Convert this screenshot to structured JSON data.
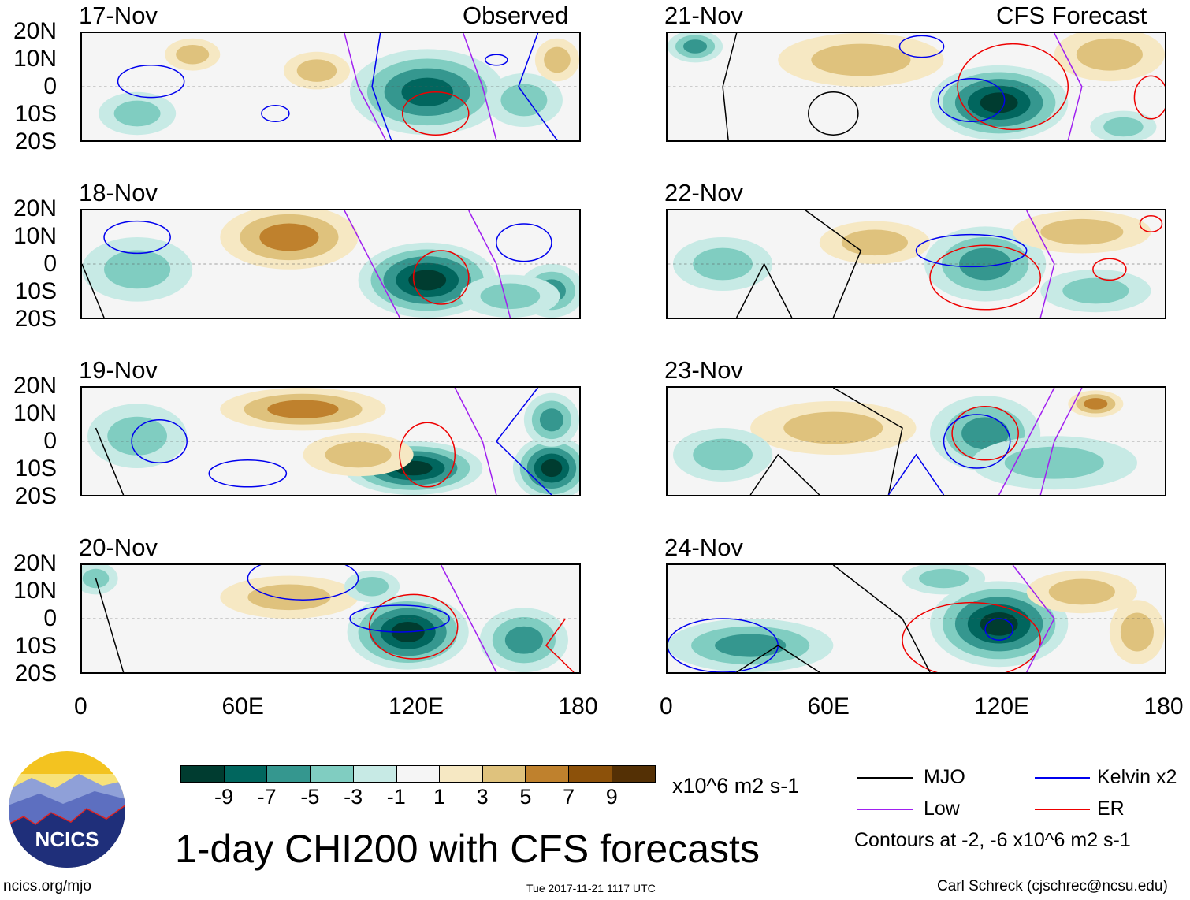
{
  "header": {
    "left_label": "Observed",
    "right_label": "CFS Forecast"
  },
  "y_ticks": [
    "20N",
    "10N",
    "0",
    "10S",
    "20S"
  ],
  "x_ticks": [
    "0",
    "60E",
    "120E",
    "180"
  ],
  "colors": [
    "#003c30",
    "#01665e",
    "#35978f",
    "#80cdc1",
    "#c7eae5",
    "#f5f5f5",
    "#f6e8c3",
    "#dfc27d",
    "#bf812d",
    "#8c510a",
    "#543005"
  ],
  "contour_colors": {
    "mjo": "#000000",
    "kelvin": "#0000ee",
    "low": "#a020f0",
    "er": "#ee0000"
  },
  "panels": [
    {
      "date": "17-Nov",
      "features": [
        [
          125,
          -2,
          28,
          16,
          -7
        ],
        [
          160,
          -5,
          14,
          10,
          -3
        ],
        [
          20,
          -10,
          14,
          8,
          -3
        ],
        [
          85,
          6,
          12,
          7,
          3
        ],
        [
          40,
          12,
          10,
          6,
          3
        ],
        [
          172,
          10,
          8,
          8,
          3
        ]
      ],
      "contours": [
        [
          "kelvin",
          25,
          2,
          12,
          6
        ],
        [
          "kelvin",
          70,
          -10,
          5,
          3
        ],
        [
          "er",
          128,
          -10,
          12,
          8
        ],
        [
          "kelvin",
          150,
          10,
          4,
          2
        ],
        [
          "low_line",
          [
            [
              95,
              20
            ],
            [
              100,
              0
            ],
            [
              110,
              -20
            ]
          ]
        ],
        [
          "low_line",
          [
            [
              138,
              20
            ],
            [
              145,
              0
            ],
            [
              150,
              -20
            ]
          ]
        ],
        [
          "kelvin_line",
          [
            [
              108,
              20
            ],
            [
              105,
              0
            ],
            [
              112,
              -20
            ]
          ]
        ],
        [
          "kelvin_line",
          [
            [
              165,
              20
            ],
            [
              158,
              0
            ],
            [
              172,
              -20
            ]
          ]
        ]
      ]
    },
    {
      "date": "18-Nov",
      "features": [
        [
          75,
          10,
          25,
          12,
          5
        ],
        [
          125,
          -6,
          25,
          14,
          -9
        ],
        [
          170,
          -10,
          12,
          10,
          -5
        ],
        [
          20,
          -2,
          20,
          12,
          -3
        ],
        [
          155,
          -12,
          18,
          8,
          -3
        ]
      ],
      "contours": [
        [
          "kelvin",
          20,
          10,
          12,
          6
        ],
        [
          "kelvin",
          160,
          8,
          10,
          7
        ],
        [
          "er",
          130,
          -5,
          10,
          10
        ],
        [
          "low_line",
          [
            [
              95,
              20
            ],
            [
              105,
              0
            ],
            [
              115,
              -20
            ]
          ]
        ],
        [
          "low_line",
          [
            [
              140,
              20
            ],
            [
              150,
              0
            ],
            [
              155,
              -20
            ]
          ]
        ],
        [
          "mjo_line",
          [
            [
              0,
              0
            ],
            [
              8,
              -20
            ]
          ]
        ]
      ]
    },
    {
      "date": "19-Nov",
      "features": [
        [
          80,
          12,
          30,
          8,
          5
        ],
        [
          120,
          -10,
          25,
          10,
          -9
        ],
        [
          170,
          -10,
          14,
          12,
          -9
        ],
        [
          170,
          8,
          10,
          10,
          -5
        ],
        [
          20,
          2,
          18,
          12,
          -3
        ],
        [
          100,
          -5,
          20,
          8,
          3
        ]
      ],
      "contours": [
        [
          "kelvin",
          28,
          0,
          10,
          8
        ],
        [
          "er",
          125,
          -5,
          10,
          12
        ],
        [
          "kelvin",
          60,
          -12,
          14,
          5
        ],
        [
          "low_line",
          [
            [
              135,
              20
            ],
            [
              145,
              0
            ],
            [
              150,
              -20
            ]
          ]
        ],
        [
          "mjo_line",
          [
            [
              5,
              5
            ],
            [
              15,
              -20
            ]
          ]
        ],
        [
          "kelvin_line",
          [
            [
              165,
              20
            ],
            [
              150,
              0
            ],
            [
              170,
              -20
            ]
          ]
        ]
      ]
    },
    {
      "date": "20-Nov",
      "features": [
        [
          118,
          -5,
          22,
          14,
          -9
        ],
        [
          160,
          -8,
          16,
          12,
          -5
        ],
        [
          75,
          8,
          25,
          8,
          3
        ],
        [
          5,
          15,
          8,
          6,
          -3
        ],
        [
          105,
          12,
          10,
          6,
          -3
        ]
      ],
      "contours": [
        [
          "kelvin",
          80,
          15,
          20,
          8
        ],
        [
          "er",
          120,
          -3,
          16,
          12
        ],
        [
          "kelvin",
          115,
          0,
          18,
          5
        ],
        [
          "low_line",
          [
            [
              130,
              20
            ],
            [
              140,
              0
            ],
            [
              150,
              -20
            ]
          ]
        ],
        [
          "mjo_line",
          [
            [
              5,
              15
            ],
            [
              15,
              -20
            ]
          ]
        ],
        [
          "er_line",
          [
            [
              175,
              0
            ],
            [
              168,
              -10
            ],
            [
              178,
              -20
            ]
          ]
        ]
      ]
    },
    {
      "date": "21-Nov",
      "features": [
        [
          120,
          -6,
          25,
          14,
          -9
        ],
        [
          70,
          10,
          30,
          10,
          3
        ],
        [
          160,
          12,
          20,
          10,
          3
        ],
        [
          10,
          15,
          10,
          6,
          -5
        ],
        [
          165,
          -15,
          12,
          6,
          -3
        ]
      ],
      "contours": [
        [
          "mjo",
          60,
          -10,
          9,
          8
        ],
        [
          "er",
          125,
          0,
          20,
          16
        ],
        [
          "kelvin",
          110,
          -5,
          12,
          8
        ],
        [
          "kelvin",
          92,
          15,
          8,
          4
        ],
        [
          "er",
          175,
          -4,
          6,
          8
        ],
        [
          "low_line",
          [
            [
              140,
              20
            ],
            [
              150,
              0
            ],
            [
              145,
              -20
            ]
          ]
        ],
        [
          "mjo_line",
          [
            [
              25,
              20
            ],
            [
              20,
              0
            ],
            [
              22,
              -20
            ]
          ]
        ]
      ]
    },
    {
      "date": "22-Nov",
      "features": [
        [
          115,
          0,
          22,
          14,
          -5
        ],
        [
          75,
          8,
          20,
          8,
          3
        ],
        [
          150,
          12,
          25,
          8,
          3
        ],
        [
          20,
          0,
          18,
          10,
          -3
        ],
        [
          155,
          -10,
          20,
          8,
          -3
        ]
      ],
      "contours": [
        [
          "er",
          160,
          -2,
          6,
          4
        ],
        [
          "er",
          175,
          15,
          4,
          3
        ],
        [
          "er",
          115,
          -5,
          20,
          12
        ],
        [
          "kelvin",
          110,
          5,
          20,
          6
        ],
        [
          "mjo_line",
          [
            [
              50,
              20
            ],
            [
              70,
              5
            ],
            [
              60,
              -20
            ]
          ]
        ],
        [
          "mjo_line",
          [
            [
              25,
              -20
            ],
            [
              35,
              0
            ],
            [
              45,
              -20
            ]
          ]
        ],
        [
          "low_line",
          [
            [
              130,
              20
            ],
            [
              140,
              0
            ],
            [
              135,
              -20
            ]
          ]
        ]
      ]
    },
    {
      "date": "23-Nov",
      "features": [
        [
          115,
          3,
          20,
          14,
          -5
        ],
        [
          155,
          14,
          10,
          5,
          5
        ],
        [
          60,
          5,
          30,
          10,
          3
        ],
        [
          20,
          -5,
          18,
          10,
          -3
        ],
        [
          140,
          -8,
          30,
          10,
          -3
        ]
      ],
      "contours": [
        [
          "er",
          115,
          3,
          12,
          10
        ],
        [
          "kelvin",
          112,
          0,
          12,
          10
        ],
        [
          "mjo_line",
          [
            [
              60,
              20
            ],
            [
              85,
              5
            ],
            [
              80,
              -20
            ]
          ]
        ],
        [
          "mjo_line",
          [
            [
              30,
              -20
            ],
            [
              40,
              -5
            ],
            [
              55,
              -20
            ]
          ]
        ],
        [
          "kelvin_line",
          [
            [
              80,
              -20
            ],
            [
              90,
              -5
            ],
            [
              100,
              -20
            ]
          ]
        ],
        [
          "low_line",
          [
            [
              120,
              -20
            ],
            [
              130,
              0
            ],
            [
              140,
              20
            ]
          ]
        ],
        [
          "low_line",
          [
            [
              135,
              -20
            ],
            [
              140,
              0
            ],
            [
              150,
              20
            ]
          ]
        ]
      ]
    },
    {
      "date": "24-Nov",
      "features": [
        [
          120,
          -2,
          25,
          16,
          -9
        ],
        [
          30,
          -10,
          30,
          10,
          -5
        ],
        [
          150,
          10,
          20,
          8,
          3
        ],
        [
          170,
          -5,
          10,
          12,
          3
        ],
        [
          100,
          15,
          15,
          6,
          -3
        ]
      ],
      "contours": [
        [
          "er",
          110,
          -8,
          25,
          14
        ],
        [
          "kelvin",
          120,
          -4,
          5,
          4
        ],
        [
          "kelvin",
          20,
          -10,
          20,
          10
        ],
        [
          "mjo_line",
          [
            [
              60,
              20
            ],
            [
              85,
              0
            ],
            [
              95,
              -20
            ]
          ]
        ],
        [
          "mjo_line",
          [
            [
              25,
              -20
            ],
            [
              40,
              -10
            ],
            [
              55,
              -20
            ]
          ]
        ],
        [
          "low_line",
          [
            [
              125,
              20
            ],
            [
              140,
              0
            ],
            [
              130,
              -20
            ]
          ]
        ]
      ]
    }
  ],
  "colorbar": {
    "labels": [
      "-9",
      "-7",
      "-5",
      "-3",
      "-1",
      "1",
      "3",
      "5",
      "7",
      "9"
    ],
    "units": "x10^6 m2 s-1"
  },
  "legend": {
    "mjo": "MJO",
    "kelvin": "Kelvin x2",
    "low": "Low",
    "er": "ER",
    "note": "Contours at -2, -6 x10^6 m2 s-1"
  },
  "title": "1-day CHI200 with CFS forecasts",
  "logo_text": "NCICS",
  "footer": {
    "url": "ncics.org/mjo",
    "timestamp": "Tue 2017-11-21 1117 UTC",
    "credit": "Carl Schreck (cjschrec@ncsu.edu)"
  }
}
